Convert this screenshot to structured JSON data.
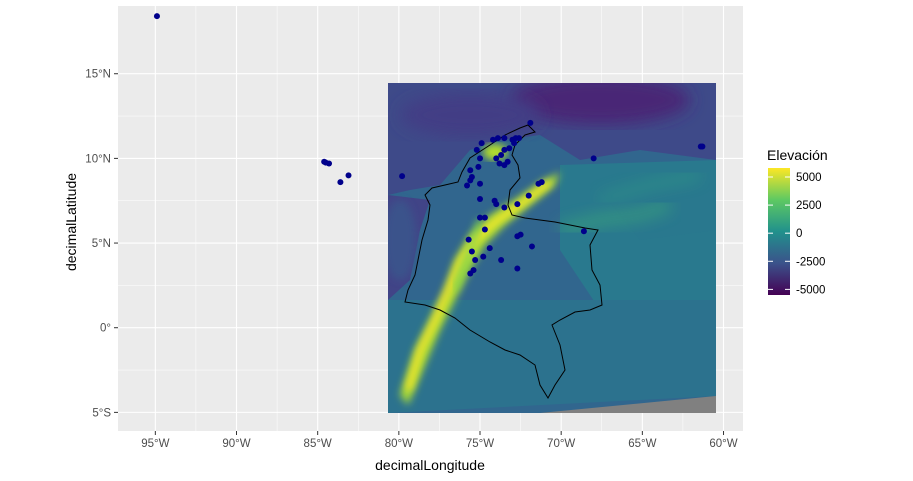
{
  "chart_data": {
    "type": "scatter",
    "title": "",
    "xlabel": "decimalLongitude",
    "ylabel": "decimalLatitude",
    "xlim": [
      -97.3,
      -58.8
    ],
    "ylim": [
      -6.1,
      19.0
    ],
    "x_ticks": [
      {
        "value": -95,
        "label": "95°W"
      },
      {
        "value": -90,
        "label": "90°W"
      },
      {
        "value": -85,
        "label": "85°W"
      },
      {
        "value": -80,
        "label": "80°W"
      },
      {
        "value": -75,
        "label": "75°W"
      },
      {
        "value": -70,
        "label": "70°W"
      },
      {
        "value": -65,
        "label": "65°W"
      },
      {
        "value": -60,
        "label": "60°W"
      }
    ],
    "y_ticks": [
      {
        "value": -5,
        "label": "5°S"
      },
      {
        "value": 0,
        "label": "0°"
      },
      {
        "value": 5,
        "label": "5°N"
      },
      {
        "value": 10,
        "label": "10°N"
      },
      {
        "value": 15,
        "label": "15°N"
      }
    ],
    "grid": true,
    "raster": {
      "name": "Elevación",
      "extent": {
        "xmin": -80,
        "xmax": -60,
        "ymin": -5,
        "ymax": 15
      },
      "colormap": "viridis",
      "range": [
        -5500,
        5800
      ]
    },
    "legend": {
      "title": "Elevación",
      "position": "right",
      "breaks": [
        5000,
        2500,
        0,
        -2500,
        -5000
      ],
      "labels": [
        "5000",
        "2500",
        "0",
        "-2500",
        "-5000"
      ],
      "colors": [
        "#fde725",
        "#5ec962",
        "#21918c",
        "#3b528b",
        "#440154"
      ]
    },
    "points_color": "#00008b",
    "points": [
      {
        "lon": -94.9,
        "lat": 18.4
      },
      {
        "lon": -84.6,
        "lat": 9.8
      },
      {
        "lon": -84.3,
        "lat": 9.7
      },
      {
        "lon": -84.5,
        "lat": 9.75
      },
      {
        "lon": -83.6,
        "lat": 8.6
      },
      {
        "lon": -83.1,
        "lat": 9.0
      },
      {
        "lon": -79.8,
        "lat": 8.95
      },
      {
        "lon": -61.4,
        "lat": 10.7
      },
      {
        "lon": -61.3,
        "lat": 10.7
      },
      {
        "lon": -75.6,
        "lat": 9.3
      },
      {
        "lon": -75.5,
        "lat": 8.9
      },
      {
        "lon": -75.8,
        "lat": 8.4
      },
      {
        "lon": -75.6,
        "lat": 8.7
      },
      {
        "lon": -75.0,
        "lat": 8.5
      },
      {
        "lon": -75.1,
        "lat": 9.5
      },
      {
        "lon": -75.0,
        "lat": 10.0
      },
      {
        "lon": -75.2,
        "lat": 10.5
      },
      {
        "lon": -74.9,
        "lat": 10.9
      },
      {
        "lon": -74.2,
        "lat": 11.1
      },
      {
        "lon": -73.9,
        "lat": 11.2
      },
      {
        "lon": -73.5,
        "lat": 11.2
      },
      {
        "lon": -73.0,
        "lat": 11.1
      },
      {
        "lon": -72.8,
        "lat": 11.2
      },
      {
        "lon": -72.9,
        "lat": 10.9
      },
      {
        "lon": -73.2,
        "lat": 10.6
      },
      {
        "lon": -73.5,
        "lat": 10.5
      },
      {
        "lon": -73.7,
        "lat": 10.2
      },
      {
        "lon": -74.0,
        "lat": 10.0
      },
      {
        "lon": -73.8,
        "lat": 9.7
      },
      {
        "lon": -73.5,
        "lat": 9.6
      },
      {
        "lon": -73.3,
        "lat": 9.8
      },
      {
        "lon": -72.6,
        "lat": 11.2
      },
      {
        "lon": -71.9,
        "lat": 12.1
      },
      {
        "lon": -75.0,
        "lat": 7.6
      },
      {
        "lon": -74.1,
        "lat": 7.5
      },
      {
        "lon": -74.0,
        "lat": 7.3
      },
      {
        "lon": -73.5,
        "lat": 7.1
      },
      {
        "lon": -72.7,
        "lat": 7.3
      },
      {
        "lon": -72.0,
        "lat": 7.8
      },
      {
        "lon": -71.4,
        "lat": 8.5
      },
      {
        "lon": -71.2,
        "lat": 8.6
      },
      {
        "lon": -68.0,
        "lat": 10.0
      },
      {
        "lon": -68.6,
        "lat": 5.7
      },
      {
        "lon": -71.8,
        "lat": 4.8
      },
      {
        "lon": -72.5,
        "lat": 5.5
      },
      {
        "lon": -72.7,
        "lat": 5.4
      },
      {
        "lon": -74.7,
        "lat": 6.5
      },
      {
        "lon": -75.0,
        "lat": 6.5
      },
      {
        "lon": -74.7,
        "lat": 5.8
      },
      {
        "lon": -74.4,
        "lat": 4.7
      },
      {
        "lon": -75.7,
        "lat": 5.2
      },
      {
        "lon": -75.5,
        "lat": 4.5
      },
      {
        "lon": -75.3,
        "lat": 4.0
      },
      {
        "lon": -74.8,
        "lat": 4.2
      },
      {
        "lon": -75.6,
        "lat": 3.2
      },
      {
        "lon": -75.4,
        "lat": 3.4
      },
      {
        "lon": -73.7,
        "lat": 4.0
      },
      {
        "lon": -72.7,
        "lat": 3.5
      }
    ]
  }
}
